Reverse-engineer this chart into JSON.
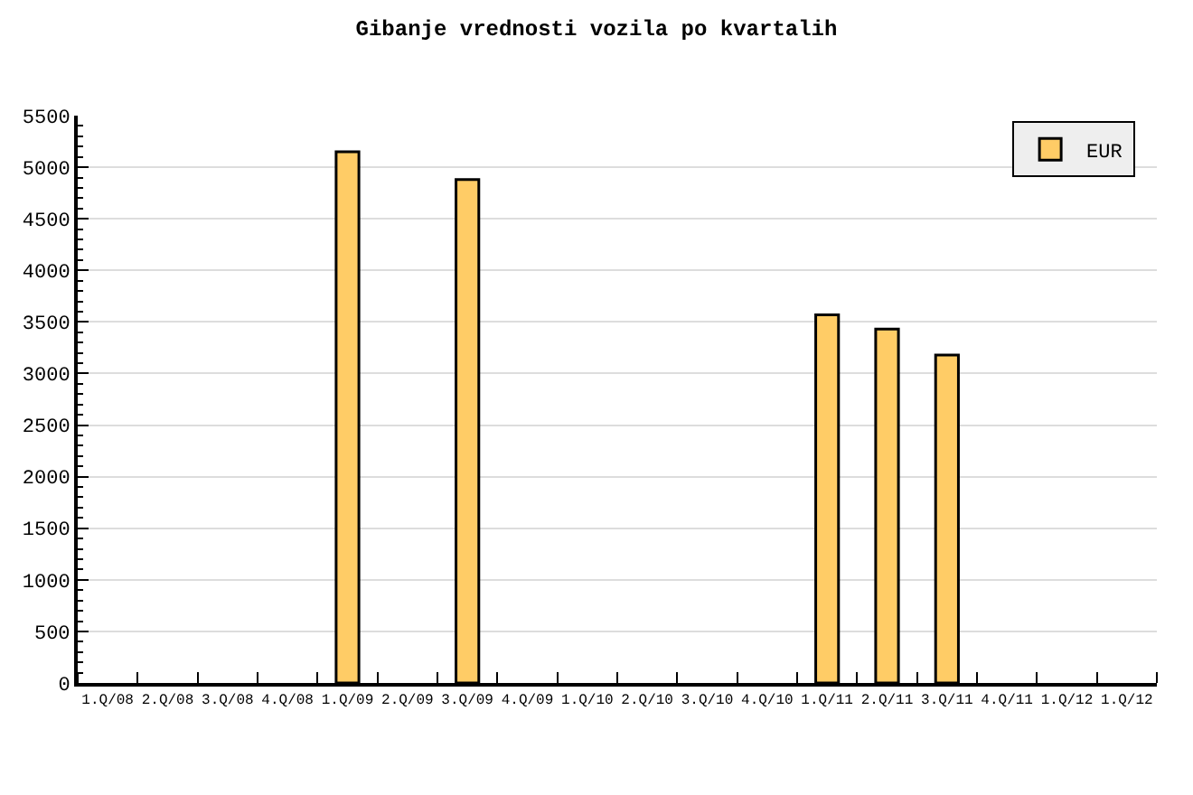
{
  "chart_data": {
    "type": "bar",
    "title": "Gibanje vrednosti vozila po kvartalih",
    "categories": [
      "1.Q/08",
      "2.Q/08",
      "3.Q/08",
      "4.Q/08",
      "1.Q/09",
      "2.Q/09",
      "3.Q/09",
      "4.Q/09",
      "1.Q/10",
      "2.Q/10",
      "3.Q/10",
      "4.Q/10",
      "1.Q/11",
      "2.Q/11",
      "3.Q/11",
      "4.Q/11",
      "1.Q/12",
      "1.Q/12"
    ],
    "series": [
      {
        "name": "EUR",
        "color": "#ffcc66",
        "values": [
          null,
          null,
          null,
          null,
          5150,
          null,
          4880,
          null,
          null,
          null,
          null,
          null,
          3570,
          3430,
          3180,
          null,
          null,
          null
        ]
      }
    ],
    "ylim": [
      0,
      5500
    ],
    "yticks": [
      0,
      500,
      1000,
      1500,
      2000,
      2500,
      3000,
      3500,
      4000,
      4500,
      5000,
      5500
    ],
    "grid": "y",
    "legend": "top right"
  }
}
